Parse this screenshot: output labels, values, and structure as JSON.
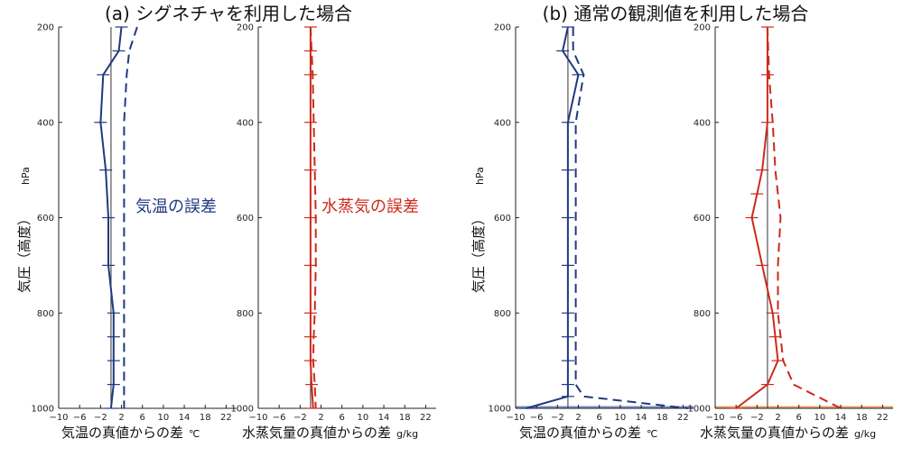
{
  "colors": {
    "temp": "#1f3a80",
    "vapor": "#cc2a1c",
    "zero": "#333333",
    "bottom_band_blue": "#7e8cc4",
    "bottom_band_red": "#f0a06a"
  },
  "panels": {
    "a": {
      "title": "(a) シグネチャを利用した場合"
    },
    "b": {
      "title": "(b) 通常の観測値を利用した場合"
    }
  },
  "axes": {
    "ylabel_main": "気圧（高度）",
    "ylabel_unit": "hPa",
    "temp_xlabel": "気温の真値からの差",
    "temp_unit": "℃",
    "vapor_xlabel": "水蒸気量の真値からの差",
    "vapor_unit": "g/kg"
  },
  "annotations": {
    "temp_error": "気温の誤差",
    "vapor_error": "水蒸気の誤差"
  },
  "chart_data": [
    {
      "type": "line",
      "panel": "a",
      "quantity": "temperature",
      "xlim": [
        -10,
        24
      ],
      "xticks": [
        "−10",
        "−6",
        "−2",
        "2",
        "6",
        "10",
        "14",
        "18",
        "22"
      ],
      "ylim": [
        200,
        1000
      ],
      "yticks": [
        "200",
        "400",
        "600",
        "800",
        "1000"
      ],
      "y_reversed": true,
      "grid": false,
      "series": [
        {
          "style": "solid",
          "x": [
            2,
            1.5,
            -1.5,
            -2,
            -1,
            -0.5,
            -0.5,
            0.5,
            0.5,
            0.5,
            0.5,
            0
          ],
          "y": [
            200,
            250,
            300,
            400,
            500,
            600,
            700,
            800,
            850,
            900,
            950,
            1000
          ],
          "errorbars": true
        },
        {
          "style": "dashed",
          "x": [
            5,
            3.5,
            3,
            2.5,
            2.5,
            2.5,
            2.5,
            2.5,
            2.5,
            2.5,
            2.5,
            2.5
          ],
          "y": [
            200,
            250,
            300,
            400,
            500,
            600,
            700,
            800,
            850,
            900,
            950,
            1000
          ]
        }
      ]
    },
    {
      "type": "line",
      "panel": "a",
      "quantity": "water_vapor",
      "xlim": [
        -10,
        24
      ],
      "xticks": [
        "−10",
        "−6",
        "−2",
        "2",
        "6",
        "10",
        "14",
        "18",
        "22"
      ],
      "ylim": [
        200,
        1000
      ],
      "yticks": [
        "200",
        "400",
        "600",
        "800",
        "1000"
      ],
      "y_reversed": true,
      "grid": false,
      "series": [
        {
          "style": "solid",
          "x": [
            0,
            0,
            0,
            0,
            0,
            0,
            0,
            0,
            0,
            0,
            0.2,
            0.5
          ],
          "y": [
            200,
            250,
            300,
            400,
            500,
            600,
            700,
            800,
            850,
            900,
            950,
            1000
          ],
          "errorbars": true
        },
        {
          "style": "dashed",
          "x": [
            0,
            0.2,
            0.4,
            0.6,
            0.8,
            1,
            1,
            0.8,
            0.6,
            0.5,
            0.8,
            1
          ],
          "y": [
            200,
            250,
            300,
            400,
            500,
            600,
            700,
            800,
            850,
            900,
            950,
            1000
          ]
        }
      ]
    },
    {
      "type": "line",
      "panel": "b",
      "quantity": "temperature",
      "xlim": [
        -10,
        24
      ],
      "xticks": [
        "−10",
        "−6",
        "−2",
        "2",
        "6",
        "10",
        "14",
        "18",
        "22"
      ],
      "ylim": [
        200,
        1000
      ],
      "yticks": [
        "200",
        "400",
        "600",
        "800",
        "1000"
      ],
      "y_reversed": true,
      "grid": false,
      "series": [
        {
          "style": "solid",
          "x": [
            0,
            -1,
            2,
            0,
            0,
            0,
            0,
            0,
            0,
            0,
            0,
            0,
            -8
          ],
          "y": [
            200,
            250,
            300,
            400,
            500,
            600,
            700,
            800,
            850,
            900,
            950,
            975,
            1000
          ],
          "errorbars": true
        },
        {
          "style": "dashed",
          "x": [
            1,
            1,
            3,
            1.5,
            1.5,
            1.5,
            1.5,
            1.5,
            1.5,
            1.5,
            1.5,
            3,
            23
          ],
          "y": [
            200,
            250,
            300,
            400,
            500,
            600,
            700,
            800,
            850,
            900,
            950,
            975,
            1000
          ]
        }
      ]
    },
    {
      "type": "line",
      "panel": "b",
      "quantity": "water_vapor",
      "xlim": [
        -10,
        24
      ],
      "xticks": [
        "−10",
        "−6",
        "−2",
        "2",
        "6",
        "10",
        "14",
        "18",
        "22"
      ],
      "ylim": [
        200,
        1000
      ],
      "yticks": [
        "200",
        "400",
        "600",
        "800",
        "1000"
      ],
      "y_reversed": true,
      "grid": false,
      "series": [
        {
          "style": "solid",
          "x": [
            0,
            0,
            0,
            -1,
            -2,
            -3,
            -1,
            1,
            1.5,
            2,
            0,
            -6
          ],
          "y": [
            200,
            300,
            400,
            500,
            550,
            600,
            700,
            800,
            850,
            900,
            950,
            1000
          ],
          "errorbars": true
        },
        {
          "style": "dashed",
          "x": [
            0,
            0.3,
            1,
            1.5,
            2,
            2.5,
            2,
            2,
            2.5,
            3,
            5,
            14
          ],
          "y": [
            200,
            300,
            400,
            500,
            550,
            600,
            700,
            800,
            850,
            900,
            950,
            1000
          ]
        }
      ]
    }
  ]
}
